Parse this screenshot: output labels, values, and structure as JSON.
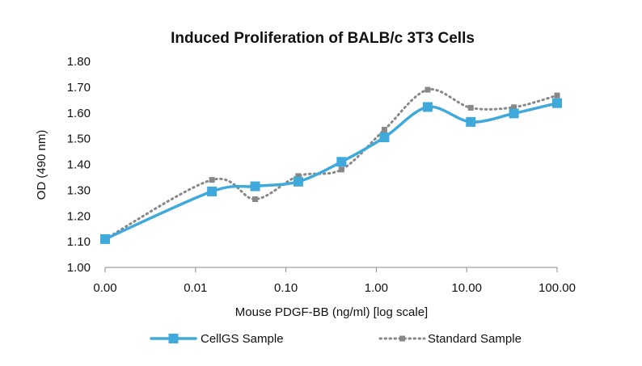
{
  "chart_data": {
    "type": "line",
    "title": "Induced Proliferation of BALB/c 3T3 Cells",
    "xlabel": "Mouse PDGF-BB (ng/ml) [log scale]",
    "ylabel": "OD (490 nm)",
    "x_scale": "log",
    "x_tick_labels": [
      "0.00",
      "0.01",
      "0.10",
      "1.00",
      "10.00",
      "100.00"
    ],
    "y_tick_labels": [
      "1.00",
      "1.10",
      "1.20",
      "1.30",
      "1.40",
      "1.50",
      "1.60",
      "1.70",
      "1.80"
    ],
    "ylim": [
      1.0,
      1.8
    ],
    "grid": false,
    "legend_position": "bottom",
    "series": [
      {
        "name": "CellGS Sample",
        "color": "#3fa9dc",
        "style": "solid",
        "marker": "square",
        "x": [
          0.001,
          0.0152,
          0.0457,
          0.137,
          0.412,
          1.23,
          3.7,
          11.1,
          33.3,
          100
        ],
        "y": [
          1.11,
          1.295,
          1.315,
          1.333,
          1.41,
          1.505,
          1.623,
          1.565,
          1.598,
          1.638
        ]
      },
      {
        "name": "Standard Sample",
        "color": "#888888",
        "style": "dotted",
        "marker": "square",
        "x": [
          0.001,
          0.0152,
          0.0457,
          0.137,
          0.412,
          1.23,
          3.7,
          11.1,
          33.3,
          100
        ],
        "y": [
          1.11,
          1.34,
          1.265,
          1.355,
          1.38,
          1.535,
          1.69,
          1.62,
          1.622,
          1.668
        ]
      }
    ]
  }
}
